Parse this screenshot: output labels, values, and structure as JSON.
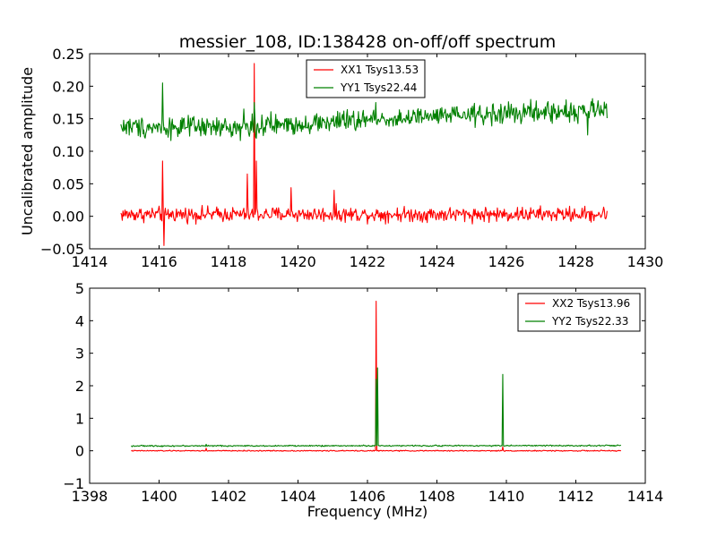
{
  "title": "messier_108, ID:138428 on-off/off spectrum",
  "colors": {
    "xx": "#ff0000",
    "yy": "#008000"
  },
  "chart_data": [
    {
      "type": "line",
      "xlim": [
        1414,
        1430
      ],
      "ylim": [
        -0.05,
        0.25
      ],
      "xticks": [
        1414,
        1416,
        1418,
        1420,
        1422,
        1424,
        1426,
        1428,
        1430
      ],
      "yticks": [
        -0.05,
        0.0,
        0.05,
        0.1,
        0.15,
        0.2,
        0.25
      ],
      "xtick_labels": [
        "1414",
        "1416",
        "1418",
        "1420",
        "1422",
        "1424",
        "1426",
        "1428",
        "1430"
      ],
      "ytick_labels": [
        "−0.05",
        "0.00",
        "0.05",
        "0.10",
        "0.15",
        "0.20",
        "0.25"
      ],
      "xlabel": "",
      "ylabel": "Uncalibrated amplitude",
      "legend_position": "top-center",
      "grid": false,
      "x_range": [
        1414.9,
        1428.9
      ],
      "series": [
        {
          "name": "XX1 Tsys13.53",
          "color": "#ff0000",
          "baseline": [
            [
              1414.9,
              0.003
            ],
            [
              1428.9,
              0.003
            ]
          ],
          "noise": 0.007,
          "spikes": [
            [
              1416.1,
              0.085
            ],
            [
              1416.15,
              -0.045
            ],
            [
              1418.55,
              0.065
            ],
            [
              1418.75,
              0.235
            ],
            [
              1418.8,
              0.085
            ],
            [
              1419.8,
              0.044
            ],
            [
              1421.05,
              0.04
            ]
          ]
        },
        {
          "name": "YY1 Tsys22.44",
          "color": "#008000",
          "baseline": [
            [
              1414.9,
              0.138
            ],
            [
              1418.0,
              0.136
            ],
            [
              1420.0,
              0.142
            ],
            [
              1422.0,
              0.148
            ],
            [
              1424.0,
              0.153
            ],
            [
              1426.0,
              0.158
            ],
            [
              1428.9,
              0.163
            ]
          ],
          "noise": 0.01,
          "spikes": [
            [
              1416.1,
              0.205
            ],
            [
              1418.45,
              0.165
            ],
            [
              1418.75,
              0.175
            ],
            [
              1422.25,
              0.175
            ],
            [
              1428.35,
              0.125
            ]
          ]
        }
      ]
    },
    {
      "type": "line",
      "xlim": [
        1398,
        1414
      ],
      "ylim": [
        -1,
        5
      ],
      "xticks": [
        1398,
        1400,
        1402,
        1404,
        1406,
        1408,
        1410,
        1412,
        1414
      ],
      "yticks": [
        -1,
        0,
        1,
        2,
        3,
        4,
        5
      ],
      "xtick_labels": [
        "1398",
        "1400",
        "1402",
        "1404",
        "1406",
        "1408",
        "1410",
        "1412",
        "1414"
      ],
      "ytick_labels": [
        "−1",
        "0",
        "1",
        "2",
        "3",
        "4",
        "5"
      ],
      "xlabel": "Frequency (MHz)",
      "ylabel": "",
      "legend_position": "top-right",
      "grid": false,
      "x_range": [
        1399.2,
        1413.3
      ],
      "series": [
        {
          "name": "XX2 Tsys13.96",
          "color": "#ff0000",
          "baseline": [
            [
              1399.2,
              0.0
            ],
            [
              1413.3,
              0.0
            ]
          ],
          "noise": 0.01,
          "spikes": [
            [
              1401.35,
              0.08
            ],
            [
              1406.25,
              4.6
            ],
            [
              1409.9,
              0.12
            ]
          ]
        },
        {
          "name": "YY2 Tsys22.33",
          "color": "#008000",
          "baseline": [
            [
              1399.2,
              0.15
            ],
            [
              1413.3,
              0.16
            ]
          ],
          "noise": 0.012,
          "spikes": [
            [
              1401.35,
              0.2
            ],
            [
              1406.25,
              2.2
            ],
            [
              1406.3,
              2.55
            ],
            [
              1409.9,
              2.35
            ]
          ]
        }
      ]
    }
  ]
}
